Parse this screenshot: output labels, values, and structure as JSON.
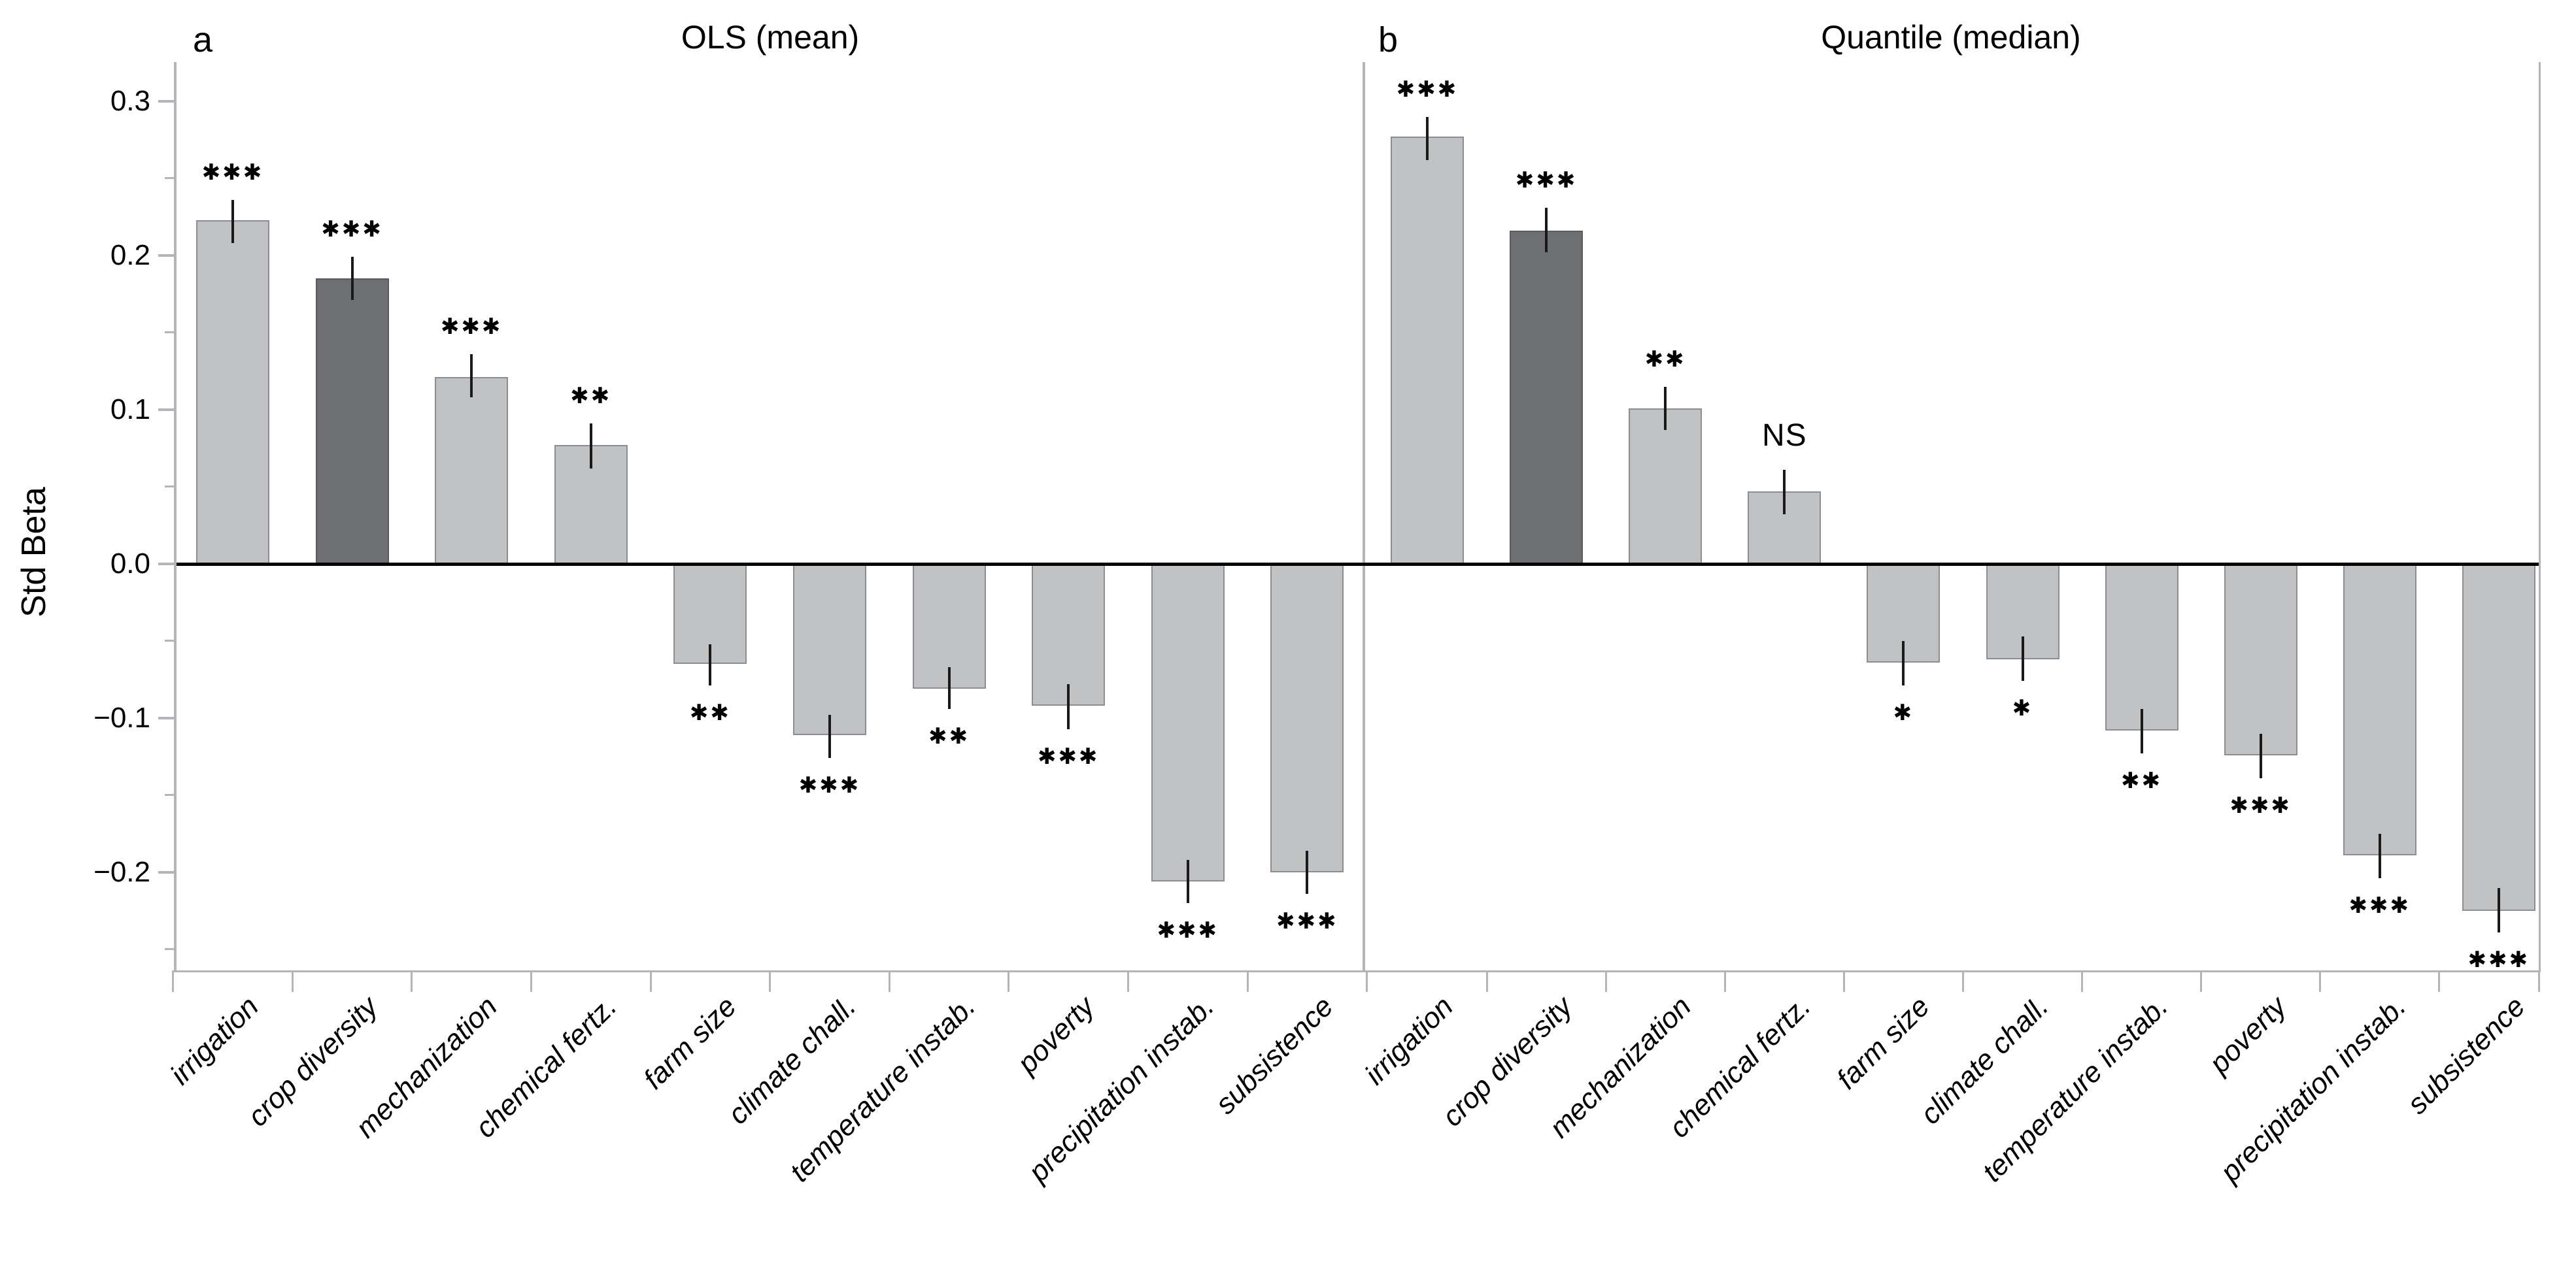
{
  "figure": {
    "type": "two-panel standardized coefficient bar chart",
    "background": "#ffffff"
  },
  "y_axis": {
    "label": "Std Beta",
    "tick_labels": [
      "0.3",
      "0.2",
      "0.1",
      "0.0",
      "−0.1",
      "−0.2"
    ],
    "tick_values": [
      0.3,
      0.2,
      0.1,
      0.0,
      -0.1,
      -0.2
    ],
    "minor_tick_values": [
      0.25,
      0.15,
      0.05,
      -0.05,
      -0.15,
      -0.25
    ],
    "range": [
      -0.264,
      0.325
    ]
  },
  "colors": {
    "bar_fill": "#c1c2c4",
    "bar_stroke": "#8b8d90",
    "highlight_fill": "#6d6f72",
    "highlight_stroke": "#595b5e",
    "error_bar": "#1a1a1a",
    "zero_line": "#000000",
    "axis_line": "#b3b5b8",
    "text": "#000000"
  },
  "chart_data": [
    {
      "type": "bar",
      "panel_label": "a",
      "title": "OLS (mean)",
      "ylabel": "Std Beta",
      "ylim": [
        -0.264,
        0.325
      ],
      "grid": false,
      "legend": false,
      "categories": [
        "irrigation",
        "crop diversity",
        "mechanization",
        "chemical fertz.",
        "farm size",
        "climate chall.",
        "temperature instab.",
        "poverty",
        "precipitation instab.",
        "subsistence"
      ],
      "values": [
        0.223,
        0.185,
        0.121,
        0.077,
        -0.065,
        -0.111,
        -0.081,
        -0.092,
        -0.206,
        -0.2
      ],
      "ci_low": [
        0.208,
        0.171,
        0.108,
        0.062,
        -0.079,
        -0.126,
        -0.094,
        -0.107,
        -0.22,
        -0.214
      ],
      "ci_high": [
        0.236,
        0.199,
        0.136,
        0.091,
        -0.052,
        -0.098,
        -0.067,
        -0.078,
        -0.192,
        -0.186
      ],
      "significance": [
        "***",
        "***",
        "***",
        "**",
        "**",
        "***",
        "**",
        "***",
        "***",
        "***"
      ],
      "highlighted_category": "crop diversity"
    },
    {
      "type": "bar",
      "panel_label": "b",
      "title": "Quantile (median)",
      "ylabel": "Std Beta",
      "ylim": [
        -0.264,
        0.325
      ],
      "grid": false,
      "legend": false,
      "categories": [
        "irrigation",
        "crop diversity",
        "mechanization",
        "chemical fertz.",
        "farm size",
        "climate chall.",
        "temperature instab.",
        "poverty",
        "precipitation instab.",
        "subsistence"
      ],
      "values": [
        0.277,
        0.216,
        0.101,
        0.047,
        -0.064,
        -0.062,
        -0.108,
        -0.124,
        -0.189,
        -0.225
      ],
      "ci_low": [
        0.262,
        0.202,
        0.087,
        0.032,
        -0.079,
        -0.076,
        -0.123,
        -0.139,
        -0.204,
        -0.239
      ],
      "ci_high": [
        0.29,
        0.231,
        0.115,
        0.061,
        -0.05,
        -0.047,
        -0.094,
        -0.11,
        -0.175,
        -0.21
      ],
      "significance": [
        "***",
        "***",
        "**",
        "NS",
        "*",
        "*",
        "**",
        "***",
        "***",
        "***"
      ],
      "highlighted_category": "crop diversity"
    }
  ]
}
